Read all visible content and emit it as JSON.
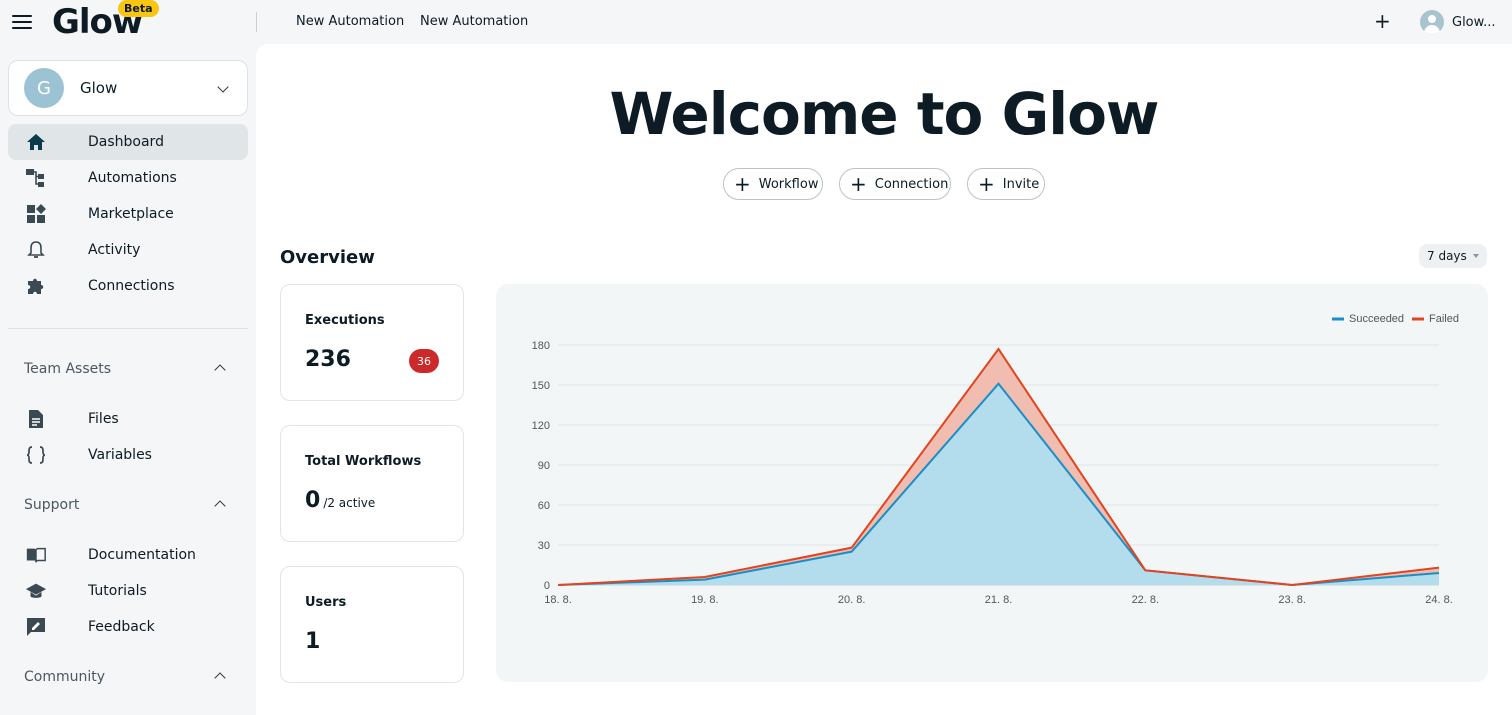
{
  "app": {
    "logo": "Glow",
    "beta": "Beta",
    "tabs": [
      "New Automation",
      "New Automation"
    ],
    "user_name": "Glow..."
  },
  "sidebar": {
    "team_initial": "G",
    "team_name": "Glow",
    "nav": [
      {
        "label": "Dashboard",
        "icon": "home-icon",
        "active": true
      },
      {
        "label": "Automations",
        "icon": "automations-icon"
      },
      {
        "label": "Marketplace",
        "icon": "marketplace-icon"
      },
      {
        "label": "Activity",
        "icon": "bell-icon"
      },
      {
        "label": "Connections",
        "icon": "puzzle-icon"
      }
    ],
    "sections": [
      {
        "label": "Team Assets",
        "items": [
          {
            "label": "Files",
            "icon": "file-icon"
          },
          {
            "label": "Variables",
            "icon": "braces-icon"
          }
        ]
      },
      {
        "label": "Support",
        "items": [
          {
            "label": "Documentation",
            "icon": "book-icon"
          },
          {
            "label": "Tutorials",
            "icon": "graduation-cap-icon"
          },
          {
            "label": "Feedback",
            "icon": "feedback-icon"
          }
        ]
      },
      {
        "label": "Community",
        "items": []
      }
    ]
  },
  "main": {
    "welcome": "Welcome to Glow",
    "quick_actions": [
      "Workflow",
      "Connection",
      "Invite"
    ],
    "overview_title": "Overview",
    "range": "7 days",
    "stats": {
      "executions_label": "Executions",
      "executions_value": "236",
      "executions_failed": "36",
      "workflows_label": "Total Workflows",
      "workflows_value": "0",
      "workflows_sub": "/2 active",
      "users_label": "Users",
      "users_value": "1"
    }
  },
  "colors": {
    "succeeded": "#1a8fc7",
    "succeeded_fill": "#b3dcec",
    "failed": "#e1441f",
    "failed_fill": "#f1bdb0"
  },
  "chart_data": {
    "type": "area",
    "categories": [
      "18. 8.",
      "19. 8.",
      "20. 8.",
      "21. 8.",
      "22. 8.",
      "23. 8.",
      "24. 8."
    ],
    "series": [
      {
        "name": "Succeeded",
        "values": [
          0,
          4,
          25,
          151,
          11,
          0,
          9
        ]
      },
      {
        "name": "Failed",
        "values": [
          0,
          2,
          3,
          26,
          0,
          0,
          4
        ]
      }
    ],
    "stacked": true,
    "yticks": [
      0,
      30,
      60,
      90,
      120,
      150,
      180
    ],
    "ylim": [
      0,
      180
    ],
    "legend_position": "top-right",
    "grid": true
  }
}
